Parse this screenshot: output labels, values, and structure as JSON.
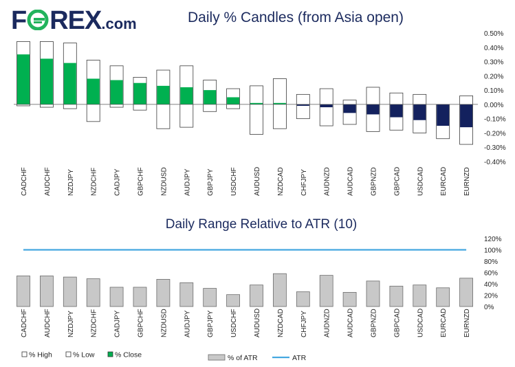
{
  "brand": {
    "logo_text_pre": "F",
    "logo_text_post": "REX",
    "logo_suffix": ".com",
    "logo_color": "#1b2a5e",
    "logo_accent": "#22b35c"
  },
  "colors": {
    "positive_close": "#00b050",
    "negative_close": "#13215e",
    "range_fill": "#ffffff",
    "range_stroke": "#3a3a3a",
    "atr_bar_fill": "#c8c8c8",
    "atr_bar_stroke": "#6b6b6b",
    "atr_line": "#45a8e0",
    "title": "#1b2a5e"
  },
  "chart_data": [
    {
      "type": "bar",
      "title": "Daily % Candles (from Asia open)",
      "categories": [
        "CADCHF",
        "AUDCHF",
        "NZDJPY",
        "NZDCHF",
        "CADJPY",
        "GBPCHF",
        "NZDUSD",
        "AUDJPY",
        "GBPJPY",
        "USDCHF",
        "AUDUSD",
        "NZDCAD",
        "CHFJPY",
        "AUDNZD",
        "AUDCAD",
        "GBPNZD",
        "GBPCAD",
        "USDCAD",
        "EURCAD",
        "EURNZD"
      ],
      "series": [
        {
          "name": "% High",
          "values": [
            0.44,
            0.44,
            0.43,
            0.31,
            0.27,
            0.19,
            0.24,
            0.27,
            0.17,
            0.11,
            0.13,
            0.18,
            0.07,
            0.11,
            0.03,
            0.12,
            0.08,
            0.07,
            0.0,
            0.06
          ]
        },
        {
          "name": "% Low",
          "values": [
            -0.01,
            -0.02,
            -0.03,
            -0.12,
            -0.02,
            -0.04,
            -0.17,
            -0.16,
            -0.05,
            -0.03,
            -0.21,
            -0.17,
            -0.1,
            -0.15,
            -0.14,
            -0.19,
            -0.18,
            -0.2,
            -0.24,
            -0.28
          ]
        },
        {
          "name": "% Close",
          "values": [
            0.35,
            0.32,
            0.29,
            0.18,
            0.17,
            0.15,
            0.13,
            0.12,
            0.1,
            0.05,
            0.01,
            0.01,
            -0.01,
            -0.02,
            -0.06,
            -0.07,
            -0.09,
            -0.11,
            -0.15,
            -0.16
          ]
        }
      ],
      "ylim": [
        -0.4,
        0.5
      ],
      "yticks": [
        "0.50%",
        "0.40%",
        "0.30%",
        "0.20%",
        "0.10%",
        "0.00%",
        "-0.10%",
        "-0.20%",
        "-0.30%",
        "-0.40%"
      ],
      "grid": false,
      "legend_placement": "bottom-left"
    },
    {
      "type": "bar",
      "title": "Daily Range Relative to ATR (10)",
      "categories": [
        "CADCHF",
        "AUDCHF",
        "NZDJPY",
        "NZDCHF",
        "CADJPY",
        "GBPCHF",
        "NZDUSD",
        "AUDJPY",
        "GBPJPY",
        "USDCHF",
        "AUDUSD",
        "NZDCAD",
        "CHFJPY",
        "AUDNZD",
        "AUDCAD",
        "GBPNZD",
        "GBPCAD",
        "USDCAD",
        "EURCAD",
        "EURNZD"
      ],
      "series": [
        {
          "name": "% of ATR",
          "values": [
            54,
            54,
            52,
            49,
            34,
            34,
            48,
            42,
            32,
            21,
            38,
            58,
            26,
            55,
            25,
            45,
            36,
            38,
            33,
            50
          ]
        },
        {
          "name": "ATR",
          "values": [
            100,
            100,
            100,
            100,
            100,
            100,
            100,
            100,
            100,
            100,
            100,
            100,
            100,
            100,
            100,
            100,
            100,
            100,
            100,
            100
          ]
        }
      ],
      "ylim": [
        0,
        120
      ],
      "yticks": [
        "120%",
        "100%",
        "80%",
        "60%",
        "40%",
        "20%",
        "0%"
      ],
      "grid": false,
      "legend_placement": "bottom-center"
    }
  ]
}
